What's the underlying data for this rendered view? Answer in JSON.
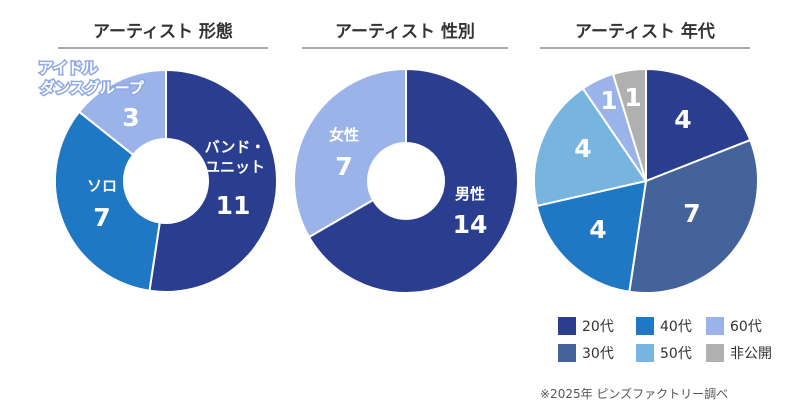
{
  "chart_data": [
    {
      "type": "pie",
      "style": "donut",
      "title": "アーティスト 形態",
      "slices": [
        {
          "label": "バンド・ユニット",
          "value": 11,
          "color": "#2b3d8f"
        },
        {
          "label": "ソロ",
          "value": 7,
          "color": "#1f78c4"
        },
        {
          "label": "アイドル ダンスグループ",
          "value": 3,
          "color": "#9ab3e8"
        }
      ]
    },
    {
      "type": "pie",
      "style": "donut",
      "title": "アーティスト 性別",
      "slices": [
        {
          "label": "男性",
          "value": 14,
          "color": "#2b3d8f"
        },
        {
          "label": "女性",
          "value": 7,
          "color": "#9ab3e8"
        }
      ]
    },
    {
      "type": "pie",
      "style": "pie",
      "title": "アーティスト 年代",
      "slices": [
        {
          "label": "20代",
          "value": 4,
          "color": "#2b3d8f"
        },
        {
          "label": "30代",
          "value": 7,
          "color": "#45639b"
        },
        {
          "label": "40代",
          "value": 4,
          "color": "#1f78c4"
        },
        {
          "label": "50代",
          "value": 4,
          "color": "#78b4e0"
        },
        {
          "label": "60代",
          "value": 1,
          "color": "#9ab3e8"
        },
        {
          "label": "非公開",
          "value": 1,
          "color": "#b0b0b0"
        }
      ],
      "legend": {
        "position": "bottom-right",
        "items": [
          {
            "label": "20代",
            "color": "#2b3d8f"
          },
          {
            "label": "40代",
            "color": "#1f78c4"
          },
          {
            "label": "60代",
            "color": "#9ab3e8"
          },
          {
            "label": "30代",
            "color": "#45639b"
          },
          {
            "label": "50代",
            "color": "#78b4e0"
          },
          {
            "label": "非公開",
            "color": "#b0b0b0"
          }
        ]
      }
    }
  ],
  "footnote": "※2025年 ピンズファクトリー調べ"
}
